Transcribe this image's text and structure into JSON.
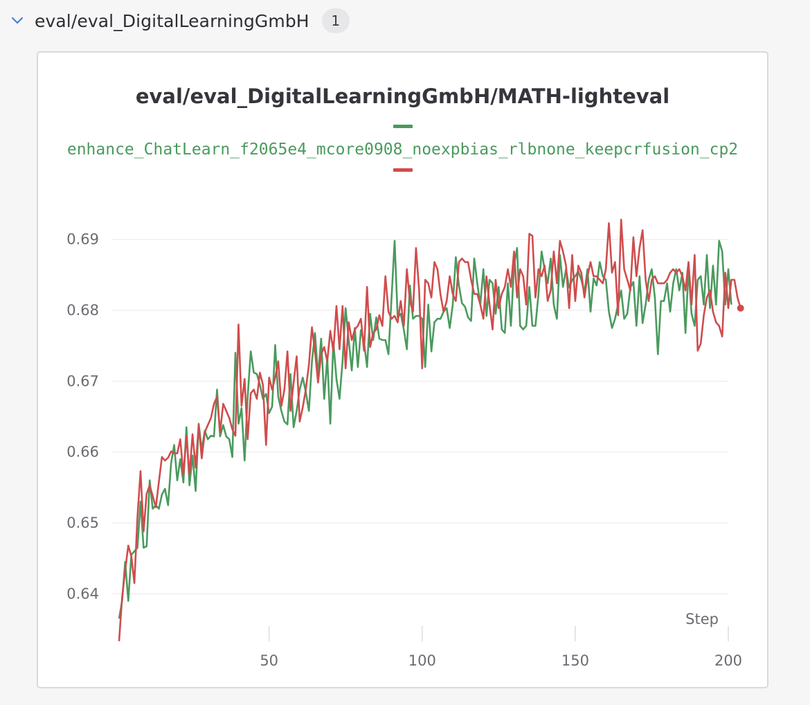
{
  "section": {
    "title": "eval/eval_DigitalLearningGmbH",
    "count": "1"
  },
  "chart_data": {
    "type": "line",
    "title": "eval/eval_DigitalLearningGmbH/MATH-lighteval",
    "xlabel": "Step",
    "ylabel": "",
    "xlim": [
      1,
      200
    ],
    "ylim": [
      0.633,
      0.693
    ],
    "xticks": [
      50,
      100,
      150,
      200
    ],
    "yticks": [
      0.64,
      0.65,
      0.66,
      0.67,
      0.68,
      0.69
    ],
    "grid": true,
    "legend_position": "top-center",
    "series": [
      {
        "name": "enhance_ChatLearn_f2065e4_mcore0908_noexpbias_rlbnone_keepcrfusion_cp2",
        "color": "#4a9a5e",
        "x_start": 1,
        "x_step": 1,
        "values": [
          0.6365,
          0.639,
          0.6445,
          0.639,
          0.6455,
          0.646,
          0.6465,
          0.653,
          0.6465,
          0.6467,
          0.656,
          0.652,
          0.6525,
          0.652,
          0.654,
          0.6548,
          0.6525,
          0.6585,
          0.661,
          0.656,
          0.659,
          0.6557,
          0.6635,
          0.6553,
          0.6595,
          0.6545,
          0.664,
          0.6603,
          0.663,
          0.6618,
          0.6623,
          0.6622,
          0.6688,
          0.6622,
          0.6638,
          0.6622,
          0.6618,
          0.6593,
          0.674,
          0.664,
          0.6662,
          0.6588,
          0.6677,
          0.6742,
          0.6712,
          0.671,
          0.6695,
          0.6675,
          0.6682,
          0.6655,
          0.6664,
          0.6751,
          0.6678,
          0.6658,
          0.6643,
          0.6639,
          0.671,
          0.6635,
          0.6658,
          0.6688,
          0.6705,
          0.6685,
          0.6658,
          0.6728,
          0.6768,
          0.6707,
          0.676,
          0.6675,
          0.6733,
          0.664,
          0.6755,
          0.6703,
          0.6675,
          0.6728,
          0.6803,
          0.6758,
          0.6715,
          0.6775,
          0.672,
          0.6772,
          0.6755,
          0.672,
          0.6795,
          0.6758,
          0.679,
          0.676,
          0.6758,
          0.6758,
          0.6738,
          0.6818,
          0.6898,
          0.679,
          0.6795,
          0.6773,
          0.6745,
          0.6835,
          0.6788,
          0.6792,
          0.6792,
          0.6788,
          0.672,
          0.6808,
          0.6742,
          0.6783,
          0.6788,
          0.6788,
          0.6798,
          0.6803,
          0.6775,
          0.6808,
          0.6875,
          0.6835,
          0.681,
          0.6805,
          0.679,
          0.6785,
          0.6873,
          0.6838,
          0.6808,
          0.6858,
          0.6792,
          0.6843,
          0.6838,
          0.6795,
          0.6833,
          0.6773,
          0.6768,
          0.6838,
          0.6778,
          0.6863,
          0.6888,
          0.6778,
          0.6773,
          0.6778,
          0.6833,
          0.6778,
          0.6778,
          0.6823,
          0.6883,
          0.6858,
          0.6838,
          0.6873,
          0.6808,
          0.6788,
          0.6878,
          0.6833,
          0.6858,
          0.6832,
          0.6843,
          0.6848,
          0.6855,
          0.6843,
          0.6825,
          0.6858,
          0.6798,
          0.6845,
          0.6835,
          0.6868,
          0.6848,
          0.6843,
          0.6798,
          0.6775,
          0.6788,
          0.6808,
          0.6828,
          0.6788,
          0.6795,
          0.6832,
          0.684,
          0.6778,
          0.6848,
          0.6782,
          0.6808,
          0.6843,
          0.6858,
          0.6818,
          0.6738,
          0.6813,
          0.6813,
          0.6838,
          0.6798,
          0.6838,
          0.6858,
          0.6828,
          0.6853,
          0.6768,
          0.6858,
          0.6795,
          0.6778,
          0.6843,
          0.6848,
          0.6808,
          0.6878,
          0.6803,
          0.6863,
          0.6808,
          0.6898,
          0.6883,
          0.6808,
          0.6858,
          0.6808
        ]
      },
      {
        "name": "",
        "color": "#d04c4c",
        "x_start": 1,
        "x_step": 1,
        "values": [
          0.6333,
          0.6395,
          0.6433,
          0.6468,
          0.6453,
          0.6415,
          0.6508,
          0.6573,
          0.6488,
          0.6541,
          0.6553,
          0.6538,
          0.6522,
          0.6558,
          0.6593,
          0.6588,
          0.6592,
          0.6601,
          0.6598,
          0.6598,
          0.6618,
          0.6568,
          0.6622,
          0.6568,
          0.6625,
          0.6578,
          0.6638,
          0.6591,
          0.6628,
          0.6638,
          0.6648,
          0.6668,
          0.6678,
          0.6628,
          0.6668,
          0.6658,
          0.6648,
          0.6632,
          0.6623,
          0.678,
          0.6665,
          0.6703,
          0.6618,
          0.6683,
          0.6688,
          0.6675,
          0.6712,
          0.6695,
          0.661,
          0.6705,
          0.6688,
          0.6705,
          0.6728,
          0.6665,
          0.6688,
          0.6742,
          0.6658,
          0.6698,
          0.6735,
          0.6643,
          0.6663,
          0.6688,
          0.6723,
          0.6776,
          0.6742,
          0.6698,
          0.6738,
          0.6748,
          0.6728,
          0.6771,
          0.6742,
          0.6806,
          0.6745,
          0.6806,
          0.6718,
          0.6783,
          0.6758,
          0.6773,
          0.6778,
          0.6788,
          0.6743,
          0.6833,
          0.6748,
          0.6768,
          0.6773,
          0.6793,
          0.6778,
          0.6848,
          0.6798,
          0.6788,
          0.6792,
          0.6783,
          0.6813,
          0.6778,
          0.6858,
          0.6813,
          0.6798,
          0.6888,
          0.6828,
          0.6718,
          0.6843,
          0.6838,
          0.6818,
          0.6868,
          0.6858,
          0.6822,
          0.6798,
          0.6813,
          0.6848,
          0.6823,
          0.6813,
          0.6868,
          0.6873,
          0.6868,
          0.6868,
          0.6843,
          0.6823,
          0.6823,
          0.6808,
          0.6788,
          0.6848,
          0.6808,
          0.6773,
          0.6843,
          0.6803,
          0.6823,
          0.6833,
          0.6858,
          0.6833,
          0.6883,
          0.6818,
          0.6858,
          0.6848,
          0.6808,
          0.6908,
          0.6905,
          0.6818,
          0.6858,
          0.6848,
          0.6863,
          0.6813,
          0.6828,
          0.6883,
          0.6838,
          0.6898,
          0.6883,
          0.6863,
          0.6803,
          0.6878,
          0.6813,
          0.6863,
          0.6853,
          0.6818,
          0.6848,
          0.6868,
          0.6848,
          0.6848,
          0.6843,
          0.6838,
          0.6858,
          0.6923,
          0.6853,
          0.6868,
          0.6793,
          0.6928,
          0.6858,
          0.6843,
          0.6828,
          0.6903,
          0.6848,
          0.6888,
          0.6913,
          0.6843,
          0.6813,
          0.6843,
          0.6848,
          0.6838,
          0.6838,
          0.6838,
          0.6843,
          0.6853,
          0.6858,
          0.6853,
          0.6858,
          0.6848,
          0.6828,
          0.6868,
          0.6808,
          0.6878,
          0.6743,
          0.6753,
          0.6793,
          0.6818,
          0.6828,
          0.6798,
          0.6783,
          0.6778,
          0.6763,
          0.6853,
          0.6803,
          0.6843,
          0.6843,
          0.6818,
          0.6803
        ]
      }
    ]
  }
}
